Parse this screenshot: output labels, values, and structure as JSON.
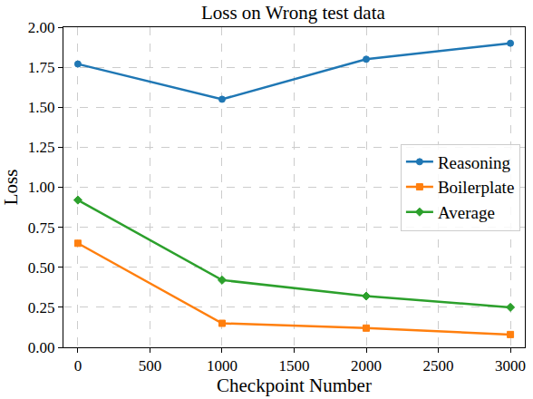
{
  "chart_data": {
    "type": "line",
    "title": "Loss on Wrong test data",
    "x_label": "Checkpoint Number",
    "y_label": "Loss",
    "x": [
      0,
      1000,
      2000,
      3000
    ],
    "series": [
      {
        "name": "Reasoning",
        "color": "#1f77b4",
        "marker": "circle",
        "values": [
          1.77,
          1.55,
          1.8,
          1.9
        ]
      },
      {
        "name": "Boilerplate",
        "color": "#ff7f0e",
        "marker": "square",
        "values": [
          0.65,
          0.15,
          0.12,
          0.08
        ]
      },
      {
        "name": "Average",
        "color": "#2ca02c",
        "marker": "diamond",
        "values": [
          0.92,
          0.42,
          0.32,
          0.25
        ]
      }
    ],
    "xlim": [
      -100,
      3100
    ],
    "xticks": [
      0,
      500,
      1000,
      1500,
      2000,
      2500,
      3000
    ],
    "ylim": [
      0,
      2.0
    ],
    "yticks": [
      {
        "value": 0,
        "label": "0.00"
      },
      0.25,
      {
        "value": 0.5,
        "label": "0.50"
      },
      0.75,
      {
        "value": 1,
        "label": "1.00"
      },
      1.25,
      {
        "value": 1.5,
        "label": "1.50"
      },
      1.75,
      {
        "value": 2,
        "label": "2.00"
      }
    ],
    "grid": true,
    "legend": "center right"
  }
}
